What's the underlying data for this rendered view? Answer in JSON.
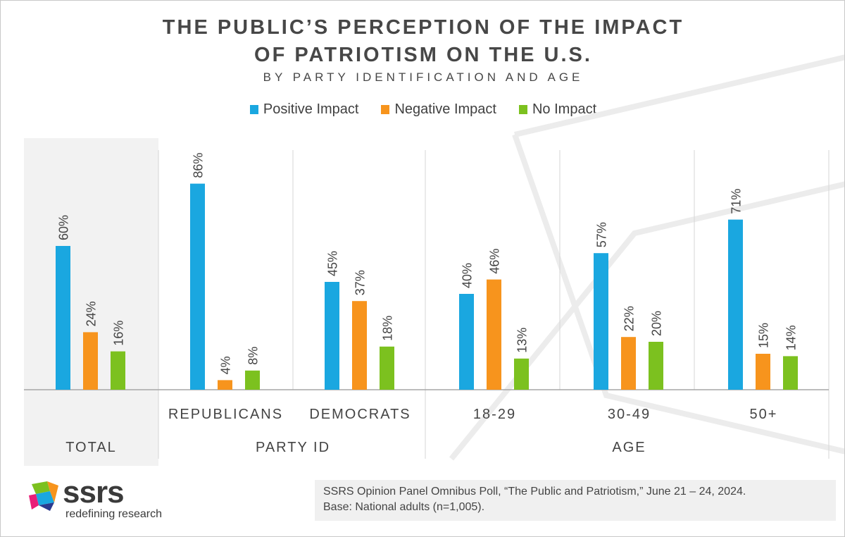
{
  "chart_data": {
    "type": "bar",
    "title": "THE PUBLIC’S PERCEPTION OF THE IMPACT",
    "title_line2": "OF PATRIOTISM ON THE U.S.",
    "subtitle": "BY PARTY IDENTIFICATION AND AGE",
    "categories": [
      "",
      "REPUBLICANS",
      "DEMOCRATS",
      "18-29",
      "30-49",
      "50+"
    ],
    "groups": [
      {
        "label": "TOTAL",
        "categories": [
          0
        ]
      },
      {
        "label": "PARTY ID",
        "categories": [
          1,
          2
        ]
      },
      {
        "label": "AGE",
        "categories": [
          3,
          4,
          5
        ]
      }
    ],
    "series": [
      {
        "name": "Positive Impact",
        "color": "#1aa7e0",
        "values": [
          60,
          86,
          45,
          40,
          57,
          71
        ]
      },
      {
        "name": "Negative Impact",
        "color": "#f7941d",
        "values": [
          24,
          4,
          37,
          46,
          22,
          15
        ]
      },
      {
        "name": "No Impact",
        "color": "#7cc11f",
        "values": [
          16,
          8,
          18,
          13,
          20,
          14
        ]
      }
    ],
    "value_suffix": "%",
    "ylim": [
      0,
      100
    ],
    "xlabel": "",
    "ylabel": "",
    "legend_position": "top-center",
    "grid": false
  },
  "source": {
    "line1": "SSRS Opinion Panel Omnibus Poll, “The Public and Patriotism,” June 21 – 24, 2024.",
    "line2": "Base: National adults (n=1,005)."
  },
  "logo": {
    "name": "ssrs",
    "tagline": "redefining research"
  },
  "colors": {
    "total_panel_bg": "#f2f2f2",
    "divider": "#d6d6d6",
    "axis": "#a6a6a6",
    "label_text": "#444444"
  }
}
